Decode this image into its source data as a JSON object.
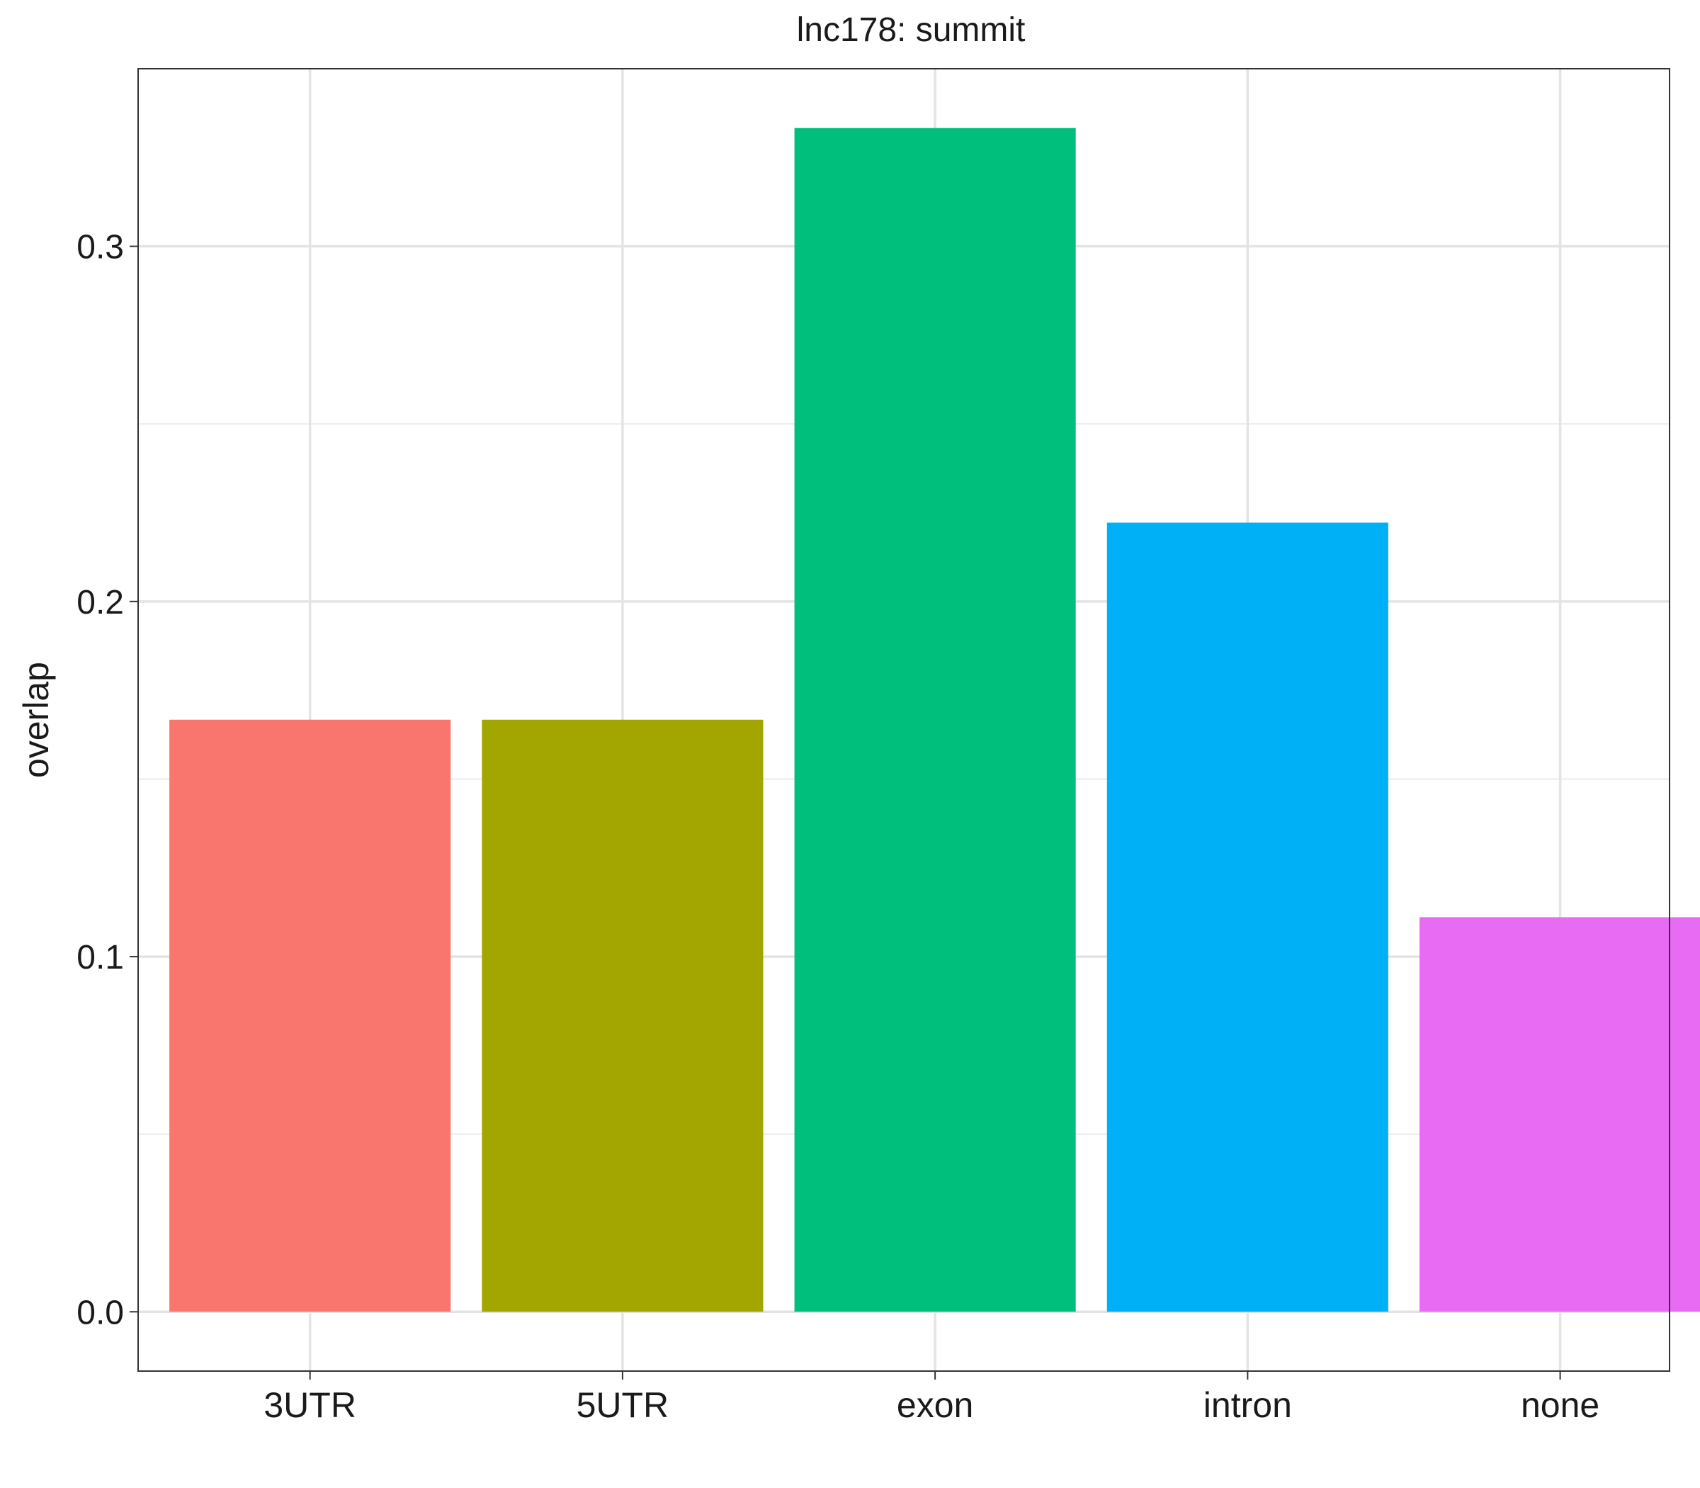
{
  "chart_data": {
    "type": "bar",
    "title": "lnc178: summit",
    "xlabel": "",
    "ylabel": "overlap",
    "categories": [
      "3UTR",
      "5UTR",
      "exon",
      "intron",
      "none"
    ],
    "values": [
      0.1667,
      0.1667,
      0.3333,
      0.2222,
      0.1111
    ],
    "colors": [
      "#F8766D",
      "#A3A500",
      "#00BF7D",
      "#00B0F6",
      "#E76BF3"
    ],
    "yticks": [
      0.0,
      0.1,
      0.2,
      0.3
    ],
    "ytick_labels": [
      "0.0",
      "0.1",
      "0.2",
      "0.3"
    ],
    "ylim": [
      -0.0167,
      0.35
    ],
    "grid": true,
    "legend": "none"
  }
}
